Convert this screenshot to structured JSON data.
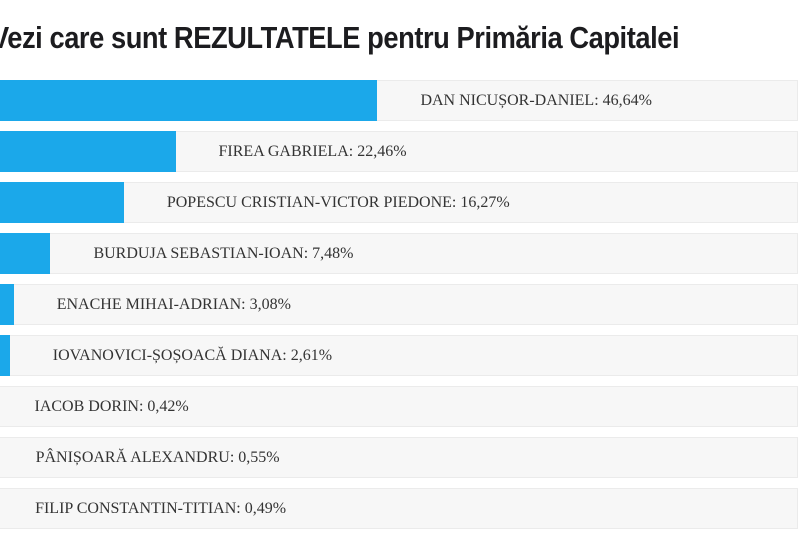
{
  "page": {
    "title": "Vezi care sunt REZULTATELE pentru Primăria Capitalei"
  },
  "chart_data": {
    "type": "bar",
    "orientation": "horizontal",
    "title": "Vezi care sunt REZULTATELE pentru Primăria Capitalei",
    "xlabel": "",
    "ylabel": "",
    "xlim": [
      0,
      97
    ],
    "grid": false,
    "legend": false,
    "categories": [
      "DAN NICUȘOR-DANIEL",
      "FIREA GABRIELA",
      "POPESCU CRISTIAN-VICTOR PIEDONE",
      "BURDUJA SEBASTIAN-IOAN",
      "ENACHE MIHAI-ADRIAN",
      "IOVANOVICI-ȘOȘOACĂ DIANA",
      "IACOB DORIN",
      "PÂNIȘOARĂ ALEXANDRU",
      "FILIP CONSTANTIN-TITIAN"
    ],
    "values": [
      46.64,
      22.46,
      16.27,
      7.48,
      3.08,
      2.61,
      0.42,
      0.55,
      0.49
    ],
    "labels": [
      "DAN NICUȘOR-DANIEL: 46,64%",
      "FIREA GABRIELA: 22,46%",
      "POPESCU CRISTIAN-VICTOR PIEDONE: 16,27%",
      "BURDUJA SEBASTIAN-IOAN: 7,48%",
      "ENACHE MIHAI-ADRIAN: 3,08%",
      "IOVANOVICI-ȘOȘOACĂ DIANA: 2,61%",
      "IACOB DORIN: 0,42%",
      "PÂNIȘOARĂ ALEXANDRU: 0,55%",
      "FILIP CONSTANTIN-TITIAN: 0,49%"
    ],
    "bar_color": "#1ba8ea",
    "track_color": "#f7f7f7",
    "track_border_color": "#ebebeb",
    "label_color": "#333333",
    "title_color": "#1c1c1f"
  }
}
